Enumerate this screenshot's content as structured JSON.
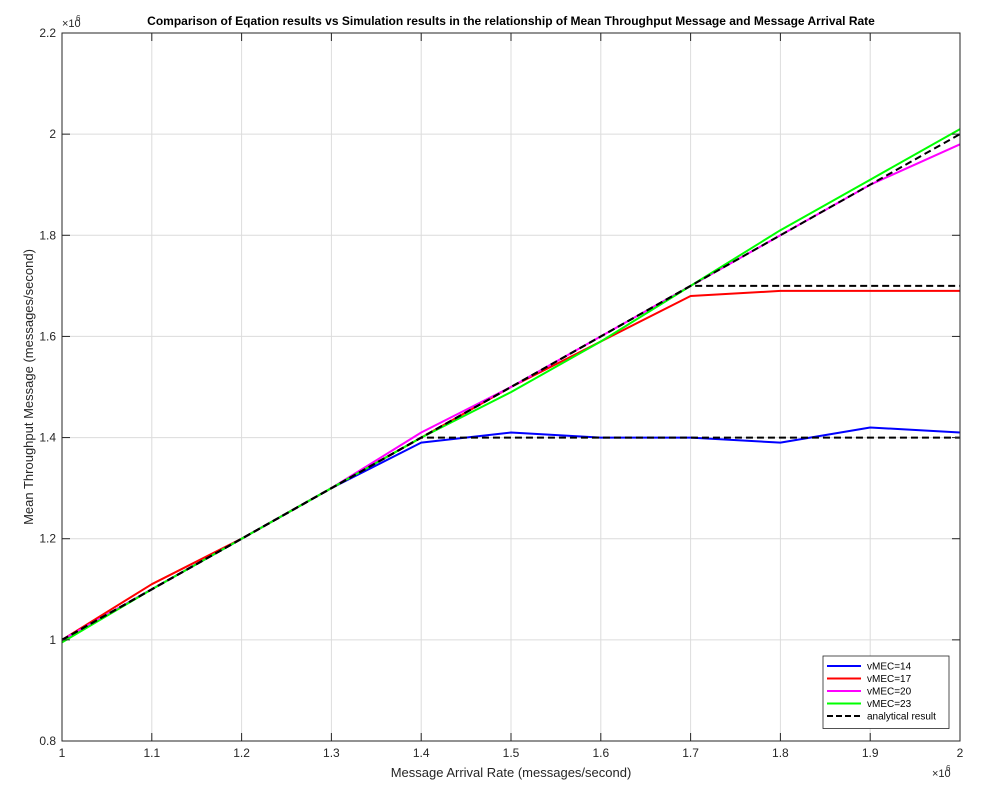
{
  "chart_data": {
    "type": "line",
    "title": "Comparison of Eqation results vs Simulation results in the relationship of Mean Throughput Message and Message Arrival Rate",
    "xlabel": "Message Arrival Rate (messages/second)",
    "ylabel": "Mean Throughput Message (messages/second)",
    "x_exponent_base": "×10",
    "x_exponent_power": "6",
    "y_exponent_base": "×10",
    "y_exponent_power": "6",
    "xlim": [
      1,
      2
    ],
    "ylim": [
      0.8,
      2.2
    ],
    "xticks": [
      1,
      1.1,
      1.2,
      1.3,
      1.4,
      1.5,
      1.6,
      1.7,
      1.8,
      1.9,
      2
    ],
    "xtick_labels": [
      "1",
      "1.1",
      "1.2",
      "1.3",
      "1.4",
      "1.5",
      "1.6",
      "1.7",
      "1.8",
      "1.9",
      "2"
    ],
    "yticks": [
      0.8,
      1,
      1.2,
      1.4,
      1.6,
      1.8,
      2,
      2.2
    ],
    "ytick_labels": [
      "0.8",
      "1",
      "1.2",
      "1.4",
      "1.6",
      "1.8",
      "2",
      "2.2"
    ],
    "grid": true,
    "legend_position": "bottom-right",
    "x": [
      1,
      1.1,
      1.2,
      1.3,
      1.4,
      1.5,
      1.6,
      1.7,
      1.8,
      1.9,
      2
    ],
    "series": [
      {
        "name": "vMEC=14",
        "color": "#0000ff",
        "dashed": false,
        "values": [
          1.0,
          1.1,
          1.2,
          1.3,
          1.39,
          1.41,
          1.4,
          1.4,
          1.39,
          1.42,
          1.41
        ]
      },
      {
        "name": "vMEC=17",
        "color": "#ff0000",
        "dashed": false,
        "values": [
          1.0,
          1.11,
          1.2,
          1.3,
          1.4,
          1.5,
          1.59,
          1.68,
          1.69,
          1.69,
          1.69
        ]
      },
      {
        "name": "vMEC=20",
        "color": "#ff00ff",
        "dashed": false,
        "values": [
          1.0,
          1.1,
          1.2,
          1.3,
          1.41,
          1.5,
          1.6,
          1.7,
          1.8,
          1.9,
          1.98
        ]
      },
      {
        "name": "vMEC=23",
        "color": "#00ff00",
        "dashed": false,
        "values": [
          0.995,
          1.1,
          1.2,
          1.3,
          1.4,
          1.49,
          1.59,
          1.7,
          1.81,
          1.91,
          2.01
        ]
      },
      {
        "name": "analytical result",
        "color": "#000000",
        "dashed": true,
        "segments": [
          {
            "x": [
              1,
              1.4,
              2
            ],
            "values": [
              1.0,
              1.4,
              1.4
            ]
          },
          {
            "x": [
              1,
              1.7,
              2
            ],
            "values": [
              1.0,
              1.7,
              1.7
            ]
          },
          {
            "x": [
              1,
              2
            ],
            "values": [
              1.0,
              2.0
            ]
          }
        ]
      }
    ]
  }
}
